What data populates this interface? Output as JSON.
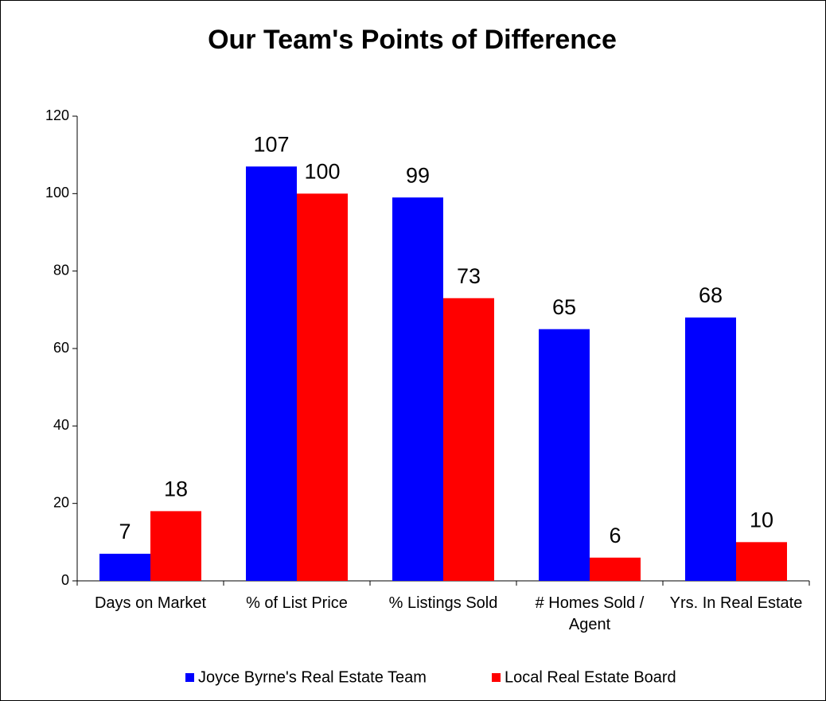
{
  "chart_data": {
    "type": "bar",
    "title": "Our Team's Points of Difference",
    "categories": [
      "Days on Market",
      "% of List Price",
      "% Listings Sold",
      "# Homes Sold / Agent",
      "Yrs. In Real Estate"
    ],
    "series": [
      {
        "name": "Joyce Byrne's Real Estate Team",
        "color": "#0000ff",
        "values": [
          7,
          107,
          99,
          65,
          68
        ]
      },
      {
        "name": "Local Real Estate Board",
        "color": "#ff0000",
        "values": [
          18,
          100,
          73,
          6,
          10
        ]
      }
    ],
    "ylim": [
      0,
      120
    ],
    "yticks": [
      0,
      20,
      40,
      60,
      80,
      100,
      120
    ],
    "grid": false,
    "legend": "bottom"
  }
}
